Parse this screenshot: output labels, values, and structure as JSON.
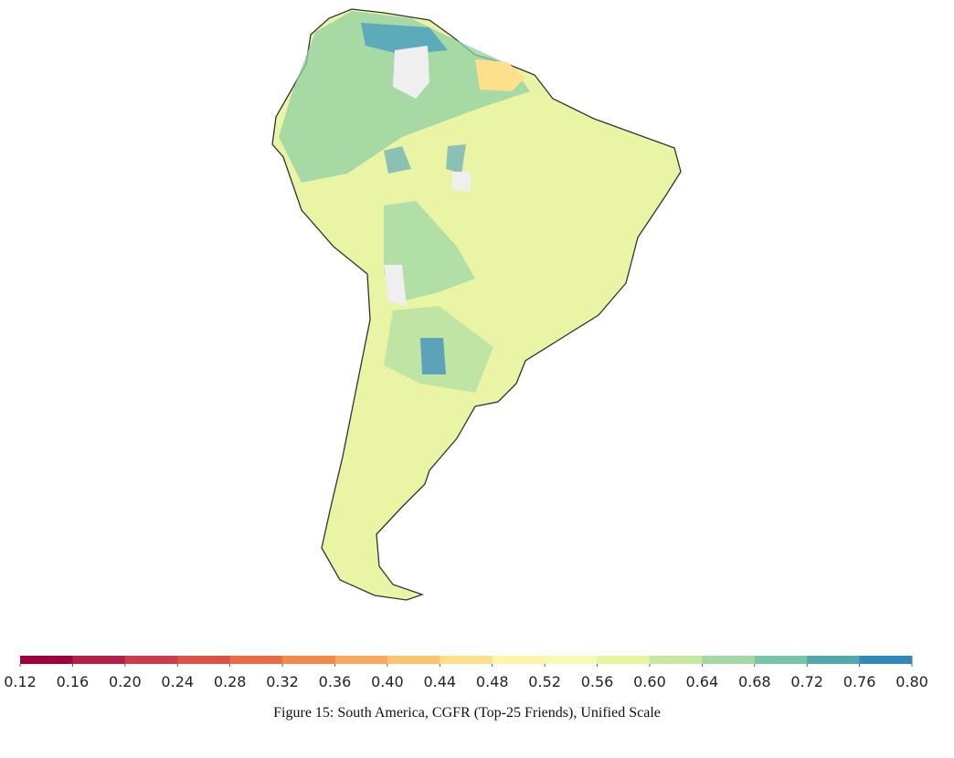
{
  "colorbar": {
    "lim": [
      0.12,
      0.8
    ],
    "ticks": [
      0.12,
      0.16,
      {
        "value": 0.2,
        "label": "0.20"
      },
      0.24,
      0.28,
      0.32,
      0.36,
      {
        "value": 0.4,
        "label": "0.40"
      },
      0.44,
      0.48,
      0.52,
      0.56,
      {
        "value": 0.6,
        "label": "0.60"
      },
      0.64,
      0.68,
      0.72,
      0.76,
      {
        "value": 0.8,
        "label": "0.80"
      }
    ],
    "colors": [
      "#9e0142",
      "#b5204a",
      "#cc3d4c",
      "#de5147",
      "#eb6c43",
      "#f4894c",
      "#f9a95d",
      "#fdc470",
      "#fede8a",
      "#fef4ac",
      "#f6fbb1",
      "#e5f49d",
      "#c6e89f",
      "#a2d9a3",
      "#77c6a6",
      "#52a7b1",
      "#3288bd"
    ]
  },
  "caption": "Figure 15: South America, CGFR (Top-25 Friends), Unified Scale"
}
